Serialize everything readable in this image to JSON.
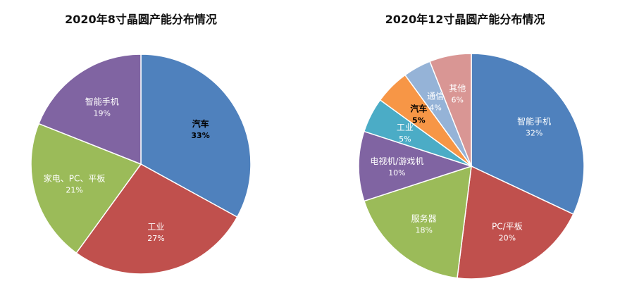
{
  "chart_data": [
    {
      "type": "pie",
      "title": "2020年8寸晶圆产能分布情况",
      "slices": [
        {
          "label": "汽车",
          "value": 33,
          "value_label": "33%",
          "color": "#4f81bd",
          "bold": true
        },
        {
          "label": "工业",
          "value": 27,
          "value_label": "27%",
          "color": "#c0504d",
          "bold": false
        },
        {
          "label": "家电、PC、平板",
          "value": 21,
          "value_label": "21%",
          "color": "#9bbb59",
          "bold": false
        },
        {
          "label": "智能手机",
          "value": 19,
          "value_label": "19%",
          "color": "#8064a2",
          "bold": false
        }
      ]
    },
    {
      "type": "pie",
      "title": "2020年12寸晶圆产能分布情况",
      "slices": [
        {
          "label": "智能手机",
          "value": 32,
          "value_label": "32%",
          "color": "#4f81bd",
          "bold": false
        },
        {
          "label": "PC/平板",
          "value": 20,
          "value_label": "20%",
          "color": "#c0504d",
          "bold": false
        },
        {
          "label": "服务器",
          "value": 18,
          "value_label": "18%",
          "color": "#9bbb59",
          "bold": false
        },
        {
          "label": "电视机/游戏机",
          "value": 10,
          "value_label": "10%",
          "color": "#8064a2",
          "bold": false
        },
        {
          "label": "工业",
          "value": 5,
          "value_label": "5%",
          "color": "#4bacc6",
          "bold": false
        },
        {
          "label": "汽车",
          "value": 5,
          "value_label": "5%",
          "color": "#f79646",
          "bold": true
        },
        {
          "label": "通信",
          "value": 4,
          "value_label": "4%",
          "color": "#95b3d7",
          "bold": false
        },
        {
          "label": "其他",
          "value": 6,
          "value_label": "6%",
          "color": "#d99694",
          "bold": false
        }
      ]
    }
  ]
}
